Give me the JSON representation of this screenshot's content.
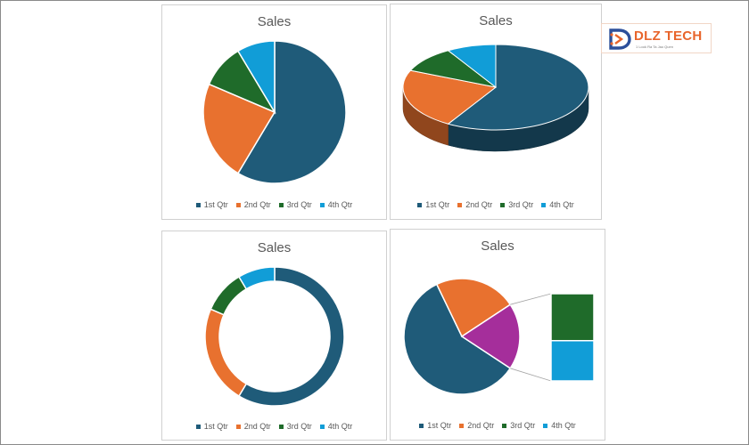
{
  "colors": {
    "q1": "#1f5b79",
    "q2": "#e8712f",
    "q3": "#1f6b2a",
    "q4": "#119dd7",
    "other": "#a52e9b"
  },
  "logo": {
    "text": "DLZ TECH",
    "subtext": "1 Look Ra Ta Jao Quen",
    "icon": "dlz-d-logo-icon"
  },
  "chart_data": [
    {
      "type": "pie",
      "variant": "2d",
      "title": "Sales",
      "categories": [
        "1st Qtr",
        "2nd Qtr",
        "3rd Qtr",
        "4th Qtr"
      ],
      "values": [
        8.2,
        3.2,
        1.4,
        1.2
      ],
      "legend": "bottom"
    },
    {
      "type": "pie",
      "variant": "3d",
      "title": "Sales",
      "categories": [
        "1st Qtr",
        "2nd Qtr",
        "3rd Qtr",
        "4th Qtr"
      ],
      "values": [
        8.2,
        3.2,
        1.4,
        1.2
      ],
      "legend": "bottom"
    },
    {
      "type": "pie",
      "variant": "doughnut",
      "title": "Sales",
      "categories": [
        "1st Qtr",
        "2nd Qtr",
        "3rd Qtr",
        "4th Qtr"
      ],
      "values": [
        8.2,
        3.2,
        1.4,
        1.2
      ],
      "legend": "bottom"
    },
    {
      "type": "pie",
      "variant": "bar-of-pie",
      "title": "Sales",
      "categories": [
        "1st Qtr",
        "2nd Qtr",
        "3rd Qtr",
        "4th Qtr"
      ],
      "values": [
        8.2,
        3.2,
        1.4,
        1.2
      ],
      "split_last": 2,
      "legend": "bottom"
    }
  ]
}
